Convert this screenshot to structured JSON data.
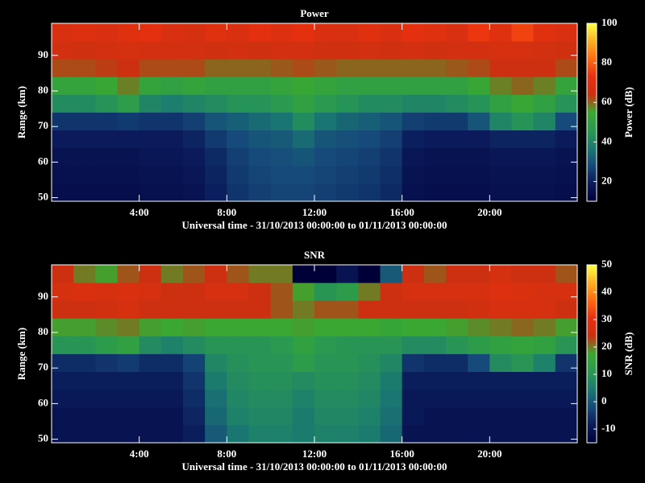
{
  "chart_data": [
    {
      "type": "heatmap",
      "title": "Power",
      "xlabel": "Universal time - 31/10/2013 00:00:00 to 01/11/2013 00:00:00",
      "ylabel": "Range (km)",
      "colorbar_label": "Power (dB)",
      "x_edges": [
        0,
        1,
        2,
        3,
        4,
        5,
        6,
        7,
        8,
        9,
        10,
        11,
        12,
        13,
        14,
        15,
        16,
        17,
        18,
        19,
        20,
        21,
        22,
        23,
        24
      ],
      "y_edges": [
        49,
        54,
        59,
        64,
        69,
        74,
        79,
        84,
        89,
        94,
        99
      ],
      "values": [
        [
          15,
          15,
          15,
          15,
          16,
          16,
          17,
          20,
          24,
          26,
          27,
          27,
          26,
          25,
          24,
          22,
          16,
          15,
          15,
          15,
          16,
          16,
          16,
          15
        ],
        [
          16,
          16,
          16,
          16,
          17,
          17,
          18,
          21,
          25,
          27,
          28,
          28,
          27,
          26,
          25,
          23,
          17,
          16,
          16,
          16,
          17,
          17,
          17,
          16
        ],
        [
          17,
          17,
          17,
          17,
          18,
          18,
          19,
          22,
          26,
          28,
          29,
          30,
          28,
          27,
          26,
          24,
          18,
          17,
          17,
          17,
          18,
          18,
          18,
          17
        ],
        [
          19,
          19,
          19,
          19,
          19,
          19,
          21,
          25,
          28,
          30,
          31,
          34,
          30,
          29,
          28,
          26,
          20,
          19,
          19,
          19,
          21,
          21,
          21,
          19
        ],
        [
          24,
          24,
          24,
          25,
          24,
          24,
          26,
          30,
          32,
          34,
          36,
          42,
          36,
          33,
          32,
          30,
          26,
          25,
          25,
          30,
          40,
          44,
          40,
          28
        ],
        [
          42,
          42,
          44,
          48,
          40,
          38,
          40,
          42,
          44,
          44,
          46,
          50,
          46,
          44,
          42,
          42,
          40,
          40,
          42,
          44,
          50,
          54,
          50,
          44
        ],
        [
          52,
          52,
          54,
          58,
          52,
          50,
          52,
          50,
          50,
          50,
          52,
          54,
          52,
          50,
          50,
          50,
          50,
          50,
          50,
          54,
          58,
          60,
          58,
          52
        ],
        [
          62,
          62,
          63,
          64,
          62,
          62,
          62,
          60,
          60,
          60,
          61,
          62,
          61,
          60,
          60,
          60,
          60,
          60,
          61,
          62,
          64,
          64,
          64,
          62
        ],
        [
          66,
          65,
          66,
          67,
          66,
          66,
          66,
          65,
          66,
          65,
          66,
          66,
          65,
          65,
          66,
          65,
          66,
          65,
          66,
          66,
          67,
          67,
          66,
          65
        ],
        [
          68,
          69,
          68,
          70,
          72,
          68,
          67,
          70,
          68,
          72,
          69,
          72,
          68,
          68,
          70,
          68,
          72,
          70,
          68,
          74,
          70,
          76,
          70,
          68
        ]
      ],
      "xlim": [
        0,
        24
      ],
      "ylim": [
        49,
        99
      ],
      "xticks": [
        {
          "value": 4,
          "label": "4:00"
        },
        {
          "value": 8,
          "label": "8:00"
        },
        {
          "value": 12,
          "label": "12:00"
        },
        {
          "value": 16,
          "label": "16:00"
        },
        {
          "value": 20,
          "label": "20:00"
        }
      ],
      "yticks": [
        50,
        60,
        70,
        80,
        90
      ],
      "zlim": [
        10,
        100
      ],
      "zticks": [
        20,
        40,
        60,
        80,
        100
      ],
      "colormap": [
        "#000038",
        "#0a1a5a",
        "#154a7a",
        "#1a7a70",
        "#2a9a50",
        "#3aa830",
        "#cc3010",
        "#e83010",
        "#ff6a10",
        "#ffb020",
        "#ffff40"
      ]
    },
    {
      "type": "heatmap",
      "title": "SNR",
      "xlabel": "Universal time - 31/10/2013 00:00:00 to 01/11/2013 00:00:00",
      "ylabel": "Range (km)",
      "colorbar_label": "SNR (dB)",
      "x_edges": [
        0,
        1,
        2,
        3,
        4,
        5,
        6,
        7,
        8,
        9,
        10,
        11,
        12,
        13,
        14,
        15,
        16,
        17,
        18,
        19,
        20,
        21,
        22,
        23,
        24
      ],
      "y_edges": [
        49,
        54,
        59,
        64,
        69,
        74,
        79,
        84,
        89,
        94,
        99
      ],
      "values": [
        [
          -10,
          -10,
          -10,
          -10,
          -10,
          -10,
          -8,
          0,
          4,
          6,
          6,
          5,
          6,
          6,
          5,
          2,
          -10,
          -10,
          -10,
          -10,
          -10,
          -10,
          -10,
          -10
        ],
        [
          -10,
          -10,
          -10,
          -10,
          -10,
          -10,
          -7,
          2,
          6,
          7,
          7,
          5,
          7,
          7,
          6,
          3,
          -9,
          -10,
          -10,
          -10,
          -10,
          -10,
          -10,
          -10
        ],
        [
          -9,
          -9,
          -9,
          -9,
          -9,
          -9,
          -6,
          3,
          7,
          8,
          8,
          6,
          8,
          8,
          7,
          4,
          -9,
          -9,
          -9,
          -9,
          -9,
          -9,
          -9,
          -9
        ],
        [
          -8,
          -8,
          -8,
          -8,
          -8,
          -8,
          -5,
          5,
          8,
          9,
          9,
          8,
          9,
          9,
          8,
          5,
          -8,
          -8,
          -8,
          -8,
          -8,
          -8,
          -8,
          -8
        ],
        [
          -6,
          -6,
          -5,
          -4,
          -6,
          -6,
          -3,
          7,
          9,
          10,
          10,
          12,
          10,
          10,
          9,
          7,
          -5,
          -6,
          -6,
          -2,
          8,
          10,
          6,
          -5
        ],
        [
          10,
          10,
          12,
          14,
          8,
          6,
          8,
          10,
          10,
          10,
          11,
          14,
          11,
          10,
          10,
          10,
          8,
          8,
          10,
          12,
          14,
          15,
          14,
          10
        ],
        [
          18,
          18,
          19,
          20,
          18,
          17,
          18,
          17,
          17,
          17,
          17,
          18,
          17,
          17,
          17,
          16,
          17,
          17,
          18,
          19,
          20,
          21,
          20,
          18
        ],
        [
          24,
          24,
          25,
          26,
          24,
          24,
          24,
          24,
          24,
          24,
          22,
          20,
          22,
          22,
          24,
          24,
          24,
          24,
          24,
          25,
          26,
          26,
          26,
          24
        ],
        [
          26,
          27,
          26,
          27,
          26,
          24,
          24,
          26,
          26,
          24,
          22,
          18,
          10,
          12,
          20,
          24,
          26,
          26,
          26,
          26,
          28,
          27,
          26,
          26
        ],
        [
          24,
          20,
          18,
          22,
          24,
          20,
          22,
          24,
          22,
          20,
          20,
          -15,
          -15,
          -10,
          -15,
          0,
          24,
          22,
          24,
          24,
          26,
          24,
          24,
          22
        ]
      ],
      "xlim": [
        0,
        24
      ],
      "ylim": [
        49,
        99
      ],
      "xticks": [
        {
          "value": 4,
          "label": "4:00"
        },
        {
          "value": 8,
          "label": "8:00"
        },
        {
          "value": 12,
          "label": "12:00"
        },
        {
          "value": 16,
          "label": "16:00"
        },
        {
          "value": 20,
          "label": "20:00"
        }
      ],
      "yticks": [
        50,
        60,
        70,
        80,
        90
      ],
      "zlim": [
        -15,
        50
      ],
      "zticks": [
        -10,
        0,
        10,
        20,
        30,
        40,
        50
      ],
      "colormap": [
        "#000038",
        "#0a1a5a",
        "#154a7a",
        "#1a7a70",
        "#2a9a50",
        "#3aa830",
        "#cc3010",
        "#e83010",
        "#ff6a10",
        "#ffb020",
        "#ffff40"
      ]
    }
  ]
}
